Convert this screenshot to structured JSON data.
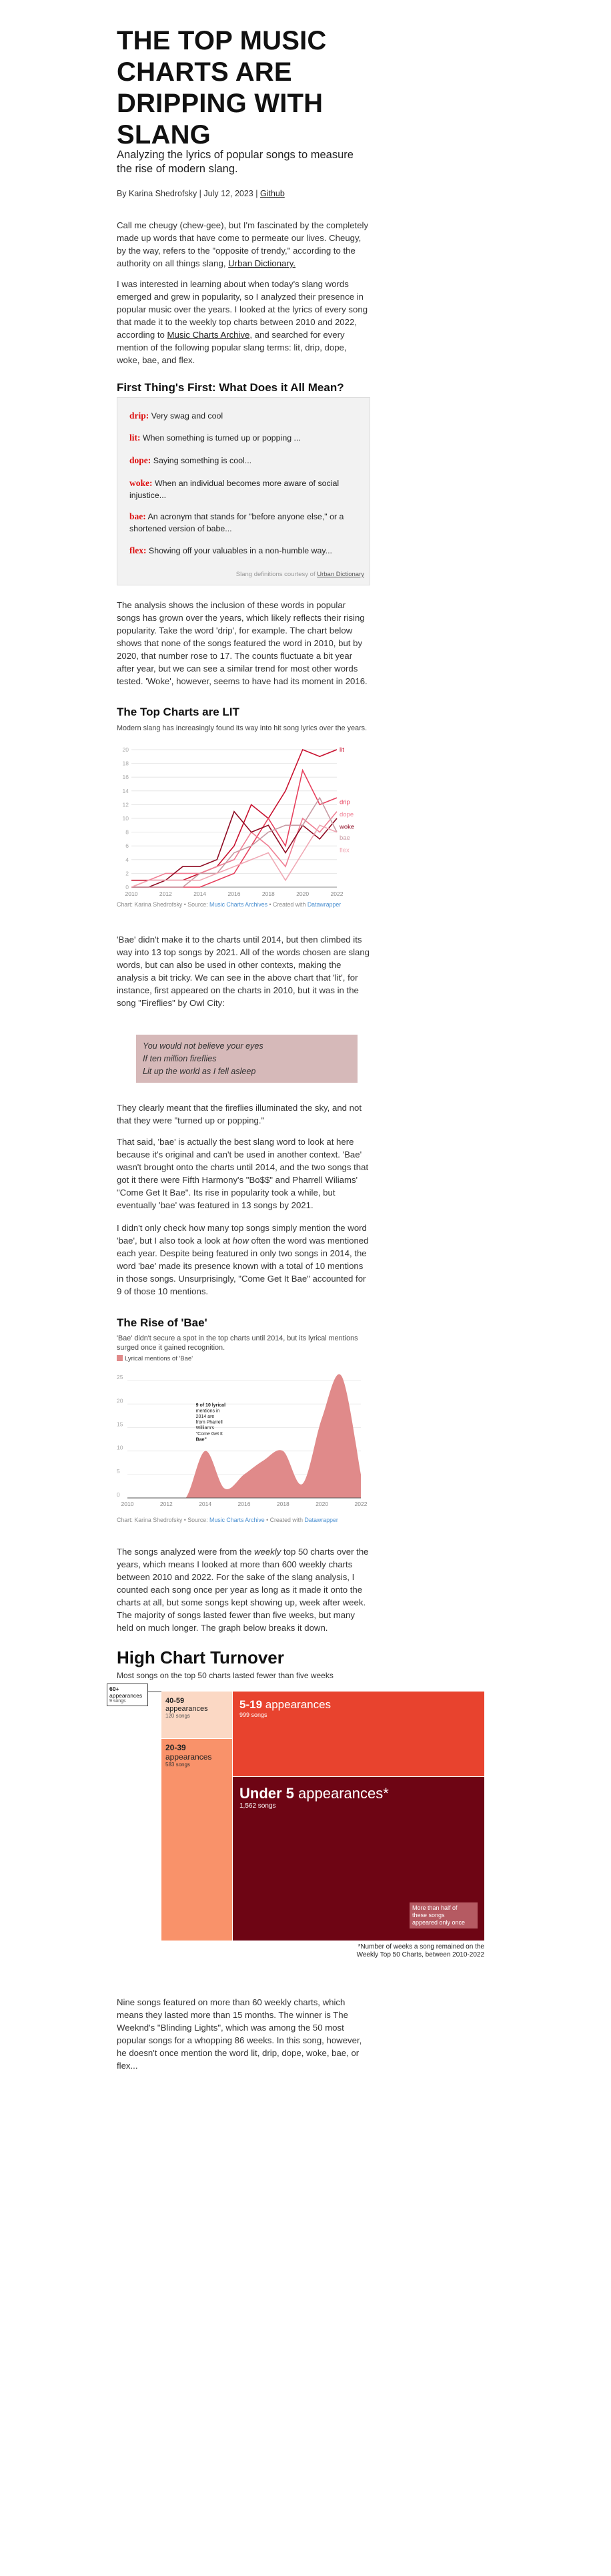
{
  "header": {
    "title": "THE TOP MUSIC CHARTS ARE DRIPPING WITH SLANG",
    "title_lines": [
      "THE TOP MUSIC",
      "CHARTS ARE",
      "DRIPPING WITH",
      "SLANG"
    ],
    "subtitle": "Analyzing the lyrics of popular songs to measure the rise of modern slang.",
    "byline_prefix": "By Karina Shedrofsky | July 12, 2023 | ",
    "byline_link": "Github"
  },
  "intro": {
    "p1_text": "Call me cheugy (chew-gee), but I'm fascinated by the completely made up words that have come to permeate our lives. Cheugy, by the way, refers to the \"opposite of trendy,\" according to the authority on all things slang, ",
    "p1_link": "Urban Dictionary.",
    "p2_text": "I was interested in learning about when today's slang words emerged and grew in popularity, so I analyzed their presence in popular music over the years. I looked at the lyrics of every song that made it to the weekly top charts between 2010 and 2022, according to ",
    "p2_link": "Music Charts Archive",
    "p2_tail": ", and searched for every mention of the following popular slang terms: lit, drip, dope, woke, bae, and flex."
  },
  "definitions": {
    "heading": "First Thing's First: What Does it All Mean?",
    "items": [
      {
        "term": "drip:",
        "def": " Very swag and cool"
      },
      {
        "term": "lit:",
        "def": " When something is turned up or popping ..."
      },
      {
        "term": "dope:",
        "def": " Saying something is cool..."
      },
      {
        "term": "woke:",
        "def": " When an individual becomes more aware of social injustice..."
      },
      {
        "term": "bae:",
        "def": " An acronym that stands for \"before anyone else,\" or a shortened version of babe..."
      },
      {
        "term": "flex:",
        "def": " Showing off your valuables in a non-humble way..."
      }
    ],
    "credit_prefix": "Slang definitions courtesy of ",
    "credit_link": "Urban Dictionary"
  },
  "analysis": {
    "p1": "The analysis shows the inclusion of these words in popular songs has grown over the years, which likely reflects their rising popularity. Take the word 'drip', for example. The chart below shows that none of the songs featured the word in 2010, but by 2020, that number rose to 17. The counts fluctuate a bit year after year, but we can see a similar trend for most other words tested. 'Woke', however, seems to have had its moment in 2016."
  },
  "chart1_text": {
    "title": "The Top Charts are LIT",
    "desc": "Modern slang has increasingly found its way into hit song lyrics over the years.",
    "note_prefix": "Chart: Karina Shedrofsky • Source: ",
    "note_link": "Music Charts Archives",
    "note_mid": " • Created with ",
    "note_dw": "Datawrapper"
  },
  "bae_text": {
    "p1": "'Bae' didn't make it to the charts until 2014, but then climbed its way into 13 top songs by 2021. All of the words chosen are slang words, but can also be used in other contexts, making the analysis a bit tricky. We can see in the above chart that 'lit', for instance, first appeared on the charts in 2010, but it was in the song \"Fireflies\" by Owl City:",
    "quote": [
      "You would not believe your eyes",
      "If ten million fireflies",
      "Lit up the world as I fell asleep"
    ],
    "p2": "They clearly meant that the fireflies illuminated the sky, and not that they were \"turned up or popping.\"",
    "p3": "That said, 'bae' is actually the best slang word to look at here because it's original and can't be used in another context. 'Bae' wasn't brought onto the charts until 2014, and the two songs that got it there were Fifth Harmony's \"Bo$$\" and Pharrell Wiliams' \"Come Get It Bae\". Its rise in popularity took a while, but eventually 'bae' was featured in 13 songs by 2021.",
    "p4_a": "I didn't only check how many top songs simply mention the word 'bae', but I also took a look at ",
    "p4_em": "how",
    "p4_b": " often the word was mentioned each year. Despite being featured in only two songs in 2014, the word 'bae' made its presence known with a total of 10 mentions in those songs. Unsurprisingly, \"Come Get It Bae\" accounted for 9 of those 10 mentions."
  },
  "chart2_text": {
    "title": "The Rise of 'Bae'",
    "desc": "'Bae' didn't secure a spot in the top charts until 2014, but its lyrical mentions surged once it gained recognition.",
    "legend": "Lyrical mentions of 'Bae'",
    "annotation": [
      "9 of 10 lyrical",
      "mentions in",
      "2014 are",
      "from Pharrell",
      "William's",
      "\"Come Get It",
      "Bae\""
    ],
    "note_prefix": "Chart: Karina Shedrofsky • Source: ",
    "note_link": "Music Charts Archive",
    "note_mid": " • Created with ",
    "note_dw": "Datawrapper"
  },
  "turnover_text": {
    "p1_a": "The songs analyzed were from the ",
    "p1_em": "weekly",
    "p1_b": " top 50 charts over the years, which means I looked at more than 600 weekly charts between 2010 and 2022. For the sake of the slang analysis, I counted each song once per year as long as it made it onto the charts at all, but some songs kept showing up, week after week. The majority of songs lasted fewer than five weeks, but many held on much longer. The graph below breaks it down."
  },
  "treemap": {
    "title": "High Chart Turnover",
    "subtitle": "Most songs on the top 50 charts lasted fewer than five weeks",
    "cells": [
      {
        "label": "60+",
        "label2": "appearances",
        "count": "9 songs"
      },
      {
        "label": "40-59",
        "label2": "appearances",
        "count": "120 songs"
      },
      {
        "label": "20-39",
        "label2": "appearances",
        "count": "583 songs"
      },
      {
        "label": "5-19",
        "label2": " appearances",
        "count": "999 songs"
      },
      {
        "label": "Under 5",
        "label2": " appearances*",
        "count": "1,562 songs"
      }
    ],
    "callout": [
      "More than half of",
      "these songs",
      "appeared only once"
    ],
    "footnote": [
      "*Number of weeks a song remained on the",
      "Weekly Top 50 Charts, between 2010-2022"
    ],
    "colors": {
      "c60": "#ffffff",
      "c40": "#fbd8c4",
      "c20": "#f9926a",
      "c5": "#e8432e",
      "cu5": "#6e0514"
    }
  },
  "closing": {
    "p1": "Nine songs featured on more than 60 weekly charts, which means they lasted more than 15 months. The winner is The Weeknd's \"Blinding Lights\", which was among the 50 most popular songs for a whopping 86 weeks. In this song, however, he doesn't once mention the word lit, drip, dope, woke, bae, or flex..."
  },
  "chart_data": [
    {
      "type": "line",
      "title": "The Top Charts are LIT",
      "subtitle": "Modern slang has increasingly found its way into hit song lyrics over the years.",
      "x": [
        2010,
        2011,
        2012,
        2013,
        2014,
        2015,
        2016,
        2017,
        2018,
        2019,
        2020,
        2021,
        2022
      ],
      "xticks": [
        2010,
        2012,
        2014,
        2016,
        2018,
        2020,
        2022
      ],
      "yticks": [
        0,
        2,
        4,
        6,
        8,
        10,
        12,
        14,
        16,
        18,
        20
      ],
      "ylim": [
        0,
        20
      ],
      "series": [
        {
          "name": "lit",
          "color": "#c8102e",
          "values": [
            1,
            1,
            1,
            1,
            2,
            3,
            6,
            12,
            10,
            14,
            20,
            19,
            20
          ]
        },
        {
          "name": "drip",
          "color": "#e7405d",
          "values": [
            0,
            0,
            0,
            0,
            0,
            1,
            2,
            6,
            10,
            6,
            17,
            12,
            13
          ]
        },
        {
          "name": "dope",
          "color": "#f07f94",
          "values": [
            0,
            1,
            2,
            2,
            2,
            3,
            4,
            8,
            6,
            3,
            10,
            8,
            11
          ]
        },
        {
          "name": "woke",
          "color": "#8e0a22",
          "values": [
            0,
            0,
            1,
            3,
            3,
            4,
            11,
            8,
            9,
            5,
            9,
            7,
            10
          ]
        },
        {
          "name": "bae",
          "color": "#c79aa3",
          "values": [
            0,
            0,
            0,
            0,
            2,
            2,
            5,
            6,
            8,
            9,
            9,
            13,
            8
          ]
        },
        {
          "name": "flex",
          "color": "#f0a8b4",
          "values": [
            0,
            1,
            1,
            1,
            1,
            2,
            3,
            4,
            5,
            1,
            5,
            9,
            8
          ]
        }
      ],
      "grid": true,
      "legend": "right (direct labels)"
    },
    {
      "type": "area",
      "title": "The Rise of 'Bae'",
      "subtitle": "'Bae' didn't secure a spot in the top charts until 2014, but its lyrical mentions surged once it gained recognition.",
      "series": [
        {
          "name": "Lyrical mentions of 'Bae'",
          "color": "#e08a8a"
        }
      ],
      "x": [
        2010,
        2011,
        2012,
        2013,
        2014,
        2015,
        2016,
        2017,
        2018,
        2019,
        2020,
        2021,
        2022
      ],
      "values": [
        0,
        0,
        0,
        0,
        10,
        2,
        5,
        8,
        10,
        3,
        17,
        26,
        5
      ],
      "xticks": [
        2010,
        2012,
        2014,
        2016,
        2018,
        2020,
        2022
      ],
      "yticks": [
        0,
        5,
        10,
        15,
        20,
        25
      ],
      "ylim": [
        0,
        27
      ],
      "grid": true
    },
    {
      "type": "treemap",
      "title": "High Chart Turnover",
      "categories": [
        "60+ appearances",
        "40-59 appearances",
        "20-39 appearances",
        "5-19 appearances",
        "Under 5 appearances"
      ],
      "values": [
        9,
        120,
        583,
        999,
        1562
      ]
    }
  ]
}
